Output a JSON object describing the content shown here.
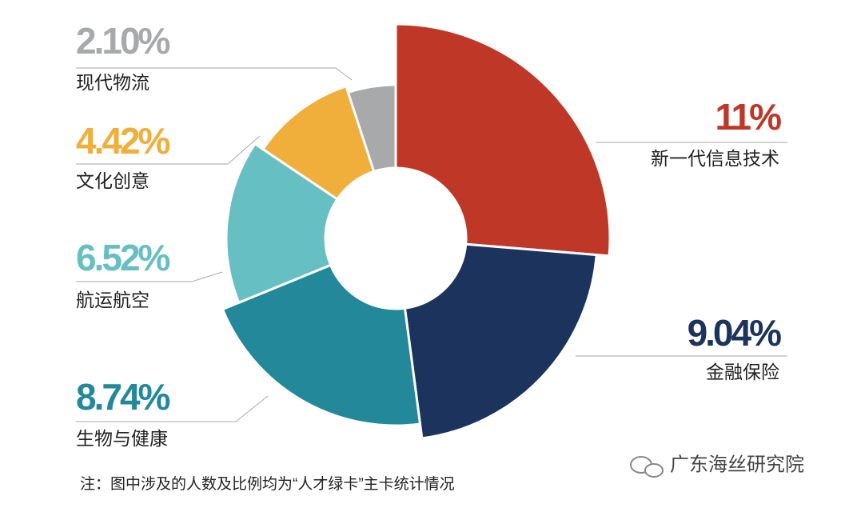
{
  "chart_data": {
    "type": "donut",
    "categories": [
      "新一代信息技术",
      "金融保险",
      "生物与健康",
      "航运航空",
      "文化创意",
      "现代物流"
    ],
    "values": [
      11,
      9.04,
      8.74,
      6.52,
      4.42,
      2.1
    ],
    "value_labels": [
      "11%",
      "9.04%",
      "8.74%",
      "6.52%",
      "4.42%",
      "2.10%"
    ],
    "colors": [
      "#bf3727",
      "#1c335d",
      "#22889a",
      "#66bfc3",
      "#f0ae3a",
      "#a8a9ab"
    ],
    "note": "注：图中涉及的人数及比例均为“人才绿卡”主卡统计情况",
    "watermark": "广东海丝研究院"
  }
}
